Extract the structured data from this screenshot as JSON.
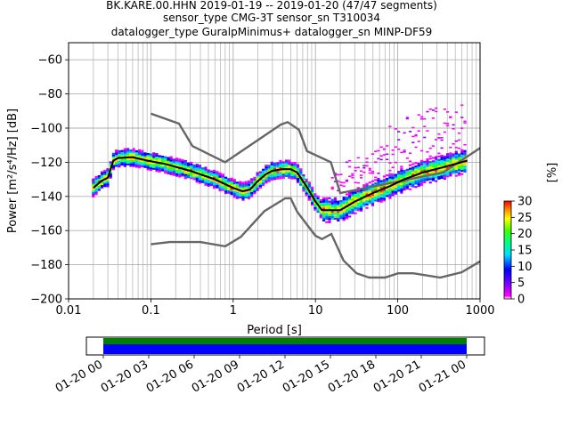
{
  "title": {
    "line1": "BK.KARE.00.HHN   2019-01-19 -- 2019-01-20  (47/47 segments)",
    "line2": "sensor_type CMG-3T sensor_sn T310034",
    "line3": "datalogger_type GuralpMinimus+ datalogger_sn MINP-DF59"
  },
  "chart_data": {
    "type": "heatmap",
    "title": "BK.KARE.00.HHN   2019-01-19 -- 2019-01-20  (47/47 segments)",
    "xlabel": "Period [s]",
    "ylabel": "Power [m²/s⁴/Hz] [dB]",
    "x_scale": "log",
    "xlim": [
      0.01,
      1000
    ],
    "ylim": [
      -200,
      -50
    ],
    "x_tick_labels": [
      "0.01",
      "0.1",
      "1",
      "10",
      "100",
      "1000"
    ],
    "y_ticks": [
      -60,
      -80,
      -100,
      -120,
      -140,
      -160,
      -180,
      -200
    ],
    "grid": true,
    "colorbar": {
      "label": "[%]",
      "range": [
        0,
        30
      ],
      "ticks": [
        0,
        5,
        10,
        15,
        20,
        25,
        30
      ]
    },
    "nhnm": [
      [
        0.1,
        -91.5
      ],
      [
        0.22,
        -97.4
      ],
      [
        0.32,
        -110.5
      ],
      [
        0.8,
        -120
      ],
      [
        3.8,
        -97.9
      ],
      [
        4.6,
        -96.5
      ],
      [
        6.3,
        -101
      ],
      [
        7.9,
        -113.5
      ],
      [
        15.4,
        -120
      ],
      [
        20,
        -138
      ],
      [
        354.8,
        -126
      ],
      [
        10000,
        -80
      ]
    ],
    "nlnm": [
      [
        0.1,
        -168
      ],
      [
        0.17,
        -166.7
      ],
      [
        0.4,
        -166.7
      ],
      [
        0.8,
        -169.2
      ],
      [
        1.24,
        -163.7
      ],
      [
        2.4,
        -148.6
      ],
      [
        4.3,
        -141.1
      ],
      [
        5,
        -141.1
      ],
      [
        6,
        -149
      ],
      [
        10,
        -163
      ],
      [
        12,
        -165
      ],
      [
        15.6,
        -162
      ],
      [
        21.9,
        -177.5
      ],
      [
        31.6,
        -185
      ],
      [
        45,
        -187.5
      ],
      [
        70,
        -187.5
      ],
      [
        101,
        -185
      ],
      [
        154,
        -185
      ],
      [
        328,
        -187.5
      ],
      [
        600,
        -184.4
      ],
      [
        1000,
        -178
      ]
    ],
    "mode_curve": [
      [
        0.02,
        -135
      ],
      [
        0.025,
        -131
      ],
      [
        0.03,
        -129
      ],
      [
        0.035,
        -119
      ],
      [
        0.04,
        -117.5
      ],
      [
        0.06,
        -117
      ],
      [
        0.09,
        -119
      ],
      [
        0.15,
        -121
      ],
      [
        0.3,
        -125
      ],
      [
        0.6,
        -130
      ],
      [
        1.0,
        -135
      ],
      [
        1.3,
        -137
      ],
      [
        1.6,
        -136
      ],
      [
        2.0,
        -131
      ],
      [
        2.5,
        -127
      ],
      [
        3.0,
        -125
      ],
      [
        4.0,
        -124
      ],
      [
        5.0,
        -124
      ],
      [
        6.0,
        -126
      ],
      [
        8.0,
        -135
      ],
      [
        10.0,
        -143
      ],
      [
        12.0,
        -148
      ],
      [
        15.0,
        -148
      ],
      [
        20.0,
        -148
      ],
      [
        30.0,
        -143
      ],
      [
        50.0,
        -138
      ],
      [
        80.0,
        -134
      ],
      [
        120.0,
        -130
      ],
      [
        200.0,
        -126
      ],
      [
        350.0,
        -123
      ],
      [
        500.0,
        -121
      ],
      [
        700.0,
        -119
      ]
    ],
    "time_axis": {
      "tick_labels": [
        "01-20 00",
        "01-20 03",
        "01-20 06",
        "01-20 09",
        "01-20 12",
        "01-20 15",
        "01-20 18",
        "01-20 21",
        "01-21 00"
      ],
      "segments_present": 47,
      "segments_total": 47,
      "bar_colors": [
        "#008000",
        "#0000ff"
      ]
    }
  },
  "colors": {
    "noise_model": "#666666",
    "mode": "#000000",
    "grid": "#b0b0b0"
  }
}
